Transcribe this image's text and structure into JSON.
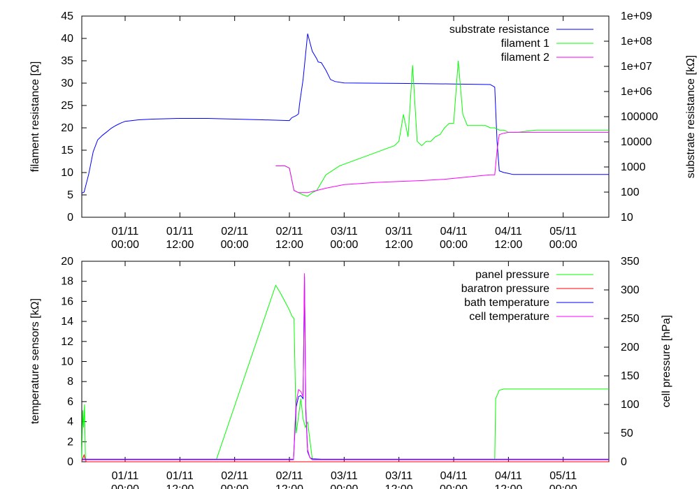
{
  "chart_data": [
    {
      "type": "line",
      "title": "",
      "xlabel": "",
      "x_ticks": [
        "01/11\n00:00",
        "01/11\n12:00",
        "02/11\n00:00",
        "02/11\n12:00",
        "03/11\n00:00",
        "03/11\n12:00",
        "04/11\n00:00",
        "04/11\n12:00",
        "05/11\n00:00"
      ],
      "x_range_hours": [
        -9.5,
        106
      ],
      "ylabel": "filament resistance [Ω]",
      "ylim": [
        0,
        45
      ],
      "yticks": [
        0,
        5,
        10,
        15,
        20,
        25,
        30,
        35,
        40,
        45
      ],
      "y2label": "substrate resistance [kΩ]",
      "y2_scale": "log",
      "y2lim": [
        10,
        1000000000
      ],
      "y2ticks": [
        "10",
        "100",
        "1000",
        "10000",
        "100000",
        "1e+06",
        "1e+07",
        "1e+08",
        "1e+09"
      ],
      "legend_position": "top-right",
      "grid": false,
      "series": [
        {
          "name": "substrate resistance",
          "color": "#0000ff",
          "axis": "y2",
          "x": [
            -9.5,
            -9,
            -8,
            -7,
            -6,
            -5,
            -4,
            -3,
            -2,
            -1,
            0,
            3,
            6,
            12,
            18,
            24,
            30,
            36,
            36.5,
            37.5,
            38,
            38.2,
            39,
            40,
            41,
            42,
            42.3,
            43,
            44,
            45,
            46,
            48,
            60,
            72,
            80,
            81,
            81.5,
            82,
            83,
            84,
            85,
            86,
            90,
            100,
            106
          ],
          "values": [
            90,
            100,
            500,
            4000,
            12000,
            18000,
            25000,
            35000,
            45000,
            55000,
            65000,
            75000,
            80000,
            85000,
            85000,
            80000,
            75000,
            70000,
            90000,
            110000,
            130000,
            300000,
            3000000,
            200000000,
            40000000,
            20000000,
            15000000,
            14000000,
            7000000,
            3000000,
            2500000,
            2200000,
            2100000,
            2000000,
            1900000,
            1500000,
            10000,
            700,
            600,
            550,
            500,
            500,
            500,
            500,
            500
          ]
        },
        {
          "name": "filament 1",
          "color": "#00ff00",
          "axis": "y1",
          "x": [
            33,
            34,
            35,
            36,
            37,
            38,
            39,
            40,
            41,
            42,
            44,
            47,
            51,
            55,
            59,
            60,
            61,
            62,
            63,
            64,
            65,
            66,
            67,
            68,
            69,
            70,
            71,
            72,
            73,
            74,
            75,
            76,
            77,
            78,
            79,
            80,
            81,
            82,
            83,
            84,
            86,
            90,
            95,
            100,
            106
          ],
          "values": [
            11.5,
            11.5,
            11.5,
            11,
            6,
            5.5,
            5,
            4.7,
            5.5,
            6,
            9.5,
            11.5,
            13,
            14.5,
            16,
            17,
            23,
            18,
            34,
            17,
            16,
            17,
            17,
            18,
            18.5,
            20,
            21,
            21,
            35,
            23,
            20.5,
            20.5,
            20.5,
            20.5,
            20.5,
            20,
            20,
            19.5,
            19.5,
            19,
            19,
            19.5,
            19.5,
            19.5,
            19.5
          ]
        },
        {
          "name": "filament 2",
          "color": "#ff00ff",
          "axis": "y1",
          "x": [
            33,
            34,
            35,
            36,
            37,
            38,
            39,
            40,
            42,
            44,
            48,
            55,
            60,
            65,
            70,
            75,
            80,
            81,
            81.5,
            82,
            83,
            84,
            86,
            90,
            95,
            100,
            106
          ],
          "values": [
            11.5,
            11.5,
            11.5,
            11,
            6,
            5.5,
            5.5,
            5.5,
            6,
            6.5,
            7.3,
            7.8,
            8,
            8.2,
            8.5,
            9,
            9.5,
            9.5,
            15,
            18.5,
            18.8,
            19,
            19,
            19,
            19,
            19,
            19
          ]
        }
      ]
    },
    {
      "type": "line",
      "title": "",
      "xlabel": "",
      "x_ticks": [
        "01/11\n00:00",
        "01/11\n12:00",
        "02/11\n00:00",
        "02/11\n12:00",
        "03/11\n00:00",
        "03/11\n12:00",
        "04/11\n00:00",
        "04/11\n12:00",
        "05/11\n00:00"
      ],
      "x_range_hours": [
        -9.5,
        106
      ],
      "ylabel": "temperature sensors [kΩ]",
      "ylim": [
        0,
        20
      ],
      "yticks": [
        0,
        2,
        4,
        6,
        8,
        10,
        12,
        14,
        16,
        18,
        20
      ],
      "y2label": "cell pressure [hPa]",
      "y2lim": [
        0,
        350
      ],
      "y2ticks": [
        0,
        50,
        100,
        150,
        200,
        250,
        300,
        350
      ],
      "legend_position": "top-right",
      "grid": false,
      "series": [
        {
          "name": "panel pressure",
          "color": "#00ff00",
          "axis": "y2",
          "x": [
            -9.5,
            -9.3,
            -9.1,
            -8.9,
            -8.7,
            -8,
            0,
            20,
            33,
            34,
            35,
            36,
            36.5,
            37,
            37.5,
            38,
            38.5,
            39,
            39.5,
            40,
            41,
            42,
            60,
            80,
            81,
            81.2,
            82,
            83,
            90,
            100,
            106
          ],
          "values": [
            0,
            90,
            60,
            100,
            5,
            4,
            4,
            4,
            308,
            295,
            280,
            265,
            255,
            250,
            50,
            80,
            110,
            75,
            60,
            70,
            5,
            4,
            4,
            4,
            4,
            110,
            125,
            127,
            127,
            127,
            127
          ]
        },
        {
          "name": "baratron pressure",
          "color": "#ff0000",
          "axis": "y2",
          "x": [
            -9.5,
            -9.2,
            -9,
            -8.8,
            -8.5,
            106
          ],
          "values": [
            0,
            8,
            12,
            6,
            0,
            0
          ]
        },
        {
          "name": "bath temperature",
          "color": "#0000ff",
          "axis": "y1",
          "x": [
            -9.5,
            0,
            20,
            35,
            36.9,
            37.2,
            37.5,
            38,
            38.5,
            39,
            39.3,
            39.6,
            40,
            40.5,
            41,
            43,
            60,
            80,
            106
          ],
          "values": [
            0.25,
            0.25,
            0.25,
            0.25,
            0.25,
            3,
            5.5,
            6.5,
            6.6,
            6.3,
            18.5,
            5,
            1,
            0.4,
            0.3,
            0.25,
            0.25,
            0.25,
            0.25
          ]
        },
        {
          "name": "cell temperature",
          "color": "#ff00ff",
          "axis": "y1",
          "x": [
            -9.5,
            0,
            20,
            35,
            36.9,
            37.2,
            37.5,
            38,
            38.5,
            39,
            39.3,
            39.6,
            40,
            40.5,
            41,
            43,
            60,
            80,
            106
          ],
          "values": [
            0.2,
            0.2,
            0.2,
            0.2,
            0.2,
            3.5,
            6,
            7.2,
            7,
            6.5,
            18.8,
            5.5,
            1.2,
            0.4,
            0.2,
            0.2,
            0.2,
            0.2,
            0.2
          ]
        }
      ]
    }
  ]
}
